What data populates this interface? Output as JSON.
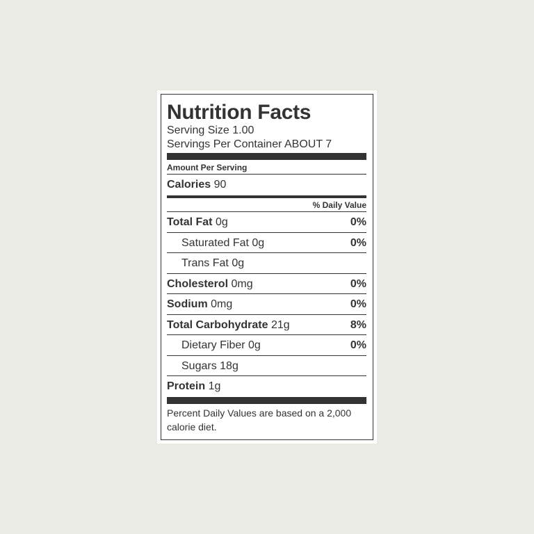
{
  "header": {
    "title": "Nutrition Facts",
    "serving_size": "Serving Size 1.00",
    "servings_per_container": "Servings Per Container ABOUT 7"
  },
  "amount_per_serving": "Amount Per Serving",
  "calories": {
    "label": "Calories",
    "value": "90"
  },
  "daily_value_header": "% Daily Value",
  "nutrients": [
    {
      "name": "Total Fat",
      "amount": "0g",
      "daily_value": "0%"
    },
    {
      "name": "Saturated Fat",
      "amount": "0g",
      "daily_value": "0%"
    },
    {
      "name": "Trans Fat",
      "amount": "0g"
    },
    {
      "name": "Cholesterol",
      "amount": "0mg",
      "daily_value": "0%"
    },
    {
      "name": "Sodium",
      "amount": "0mg",
      "daily_value": "0%"
    },
    {
      "name": "Total Carbohydrate",
      "amount": "21g",
      "daily_value": "8%"
    },
    {
      "name": "Dietary Fiber",
      "amount": "0g",
      "daily_value": "0%"
    },
    {
      "name": "Sugars",
      "amount": "18g"
    },
    {
      "name": "Protein",
      "amount": "1g"
    }
  ],
  "footnote": "Percent Daily Values are based on a 2,000 calorie diet."
}
